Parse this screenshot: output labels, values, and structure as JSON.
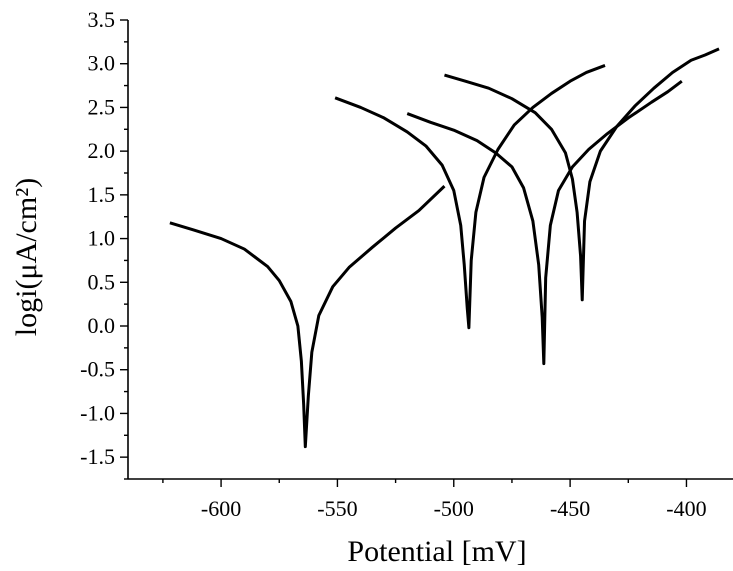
{
  "chart_data": {
    "type": "line",
    "xlabel": "Potential [mV]",
    "ylabel": "logi(μA/cm²)",
    "xlim": [
      -640,
      -380
    ],
    "ylim": [
      -1.75,
      3.5
    ],
    "xticks": [
      -600,
      -550,
      -500,
      -450,
      -400
    ],
    "xtick_labels": [
      "-600",
      "-550",
      "-500",
      "-450",
      "-400"
    ],
    "yticks": [
      -1.5,
      -1.0,
      -0.5,
      0.0,
      0.5,
      1.0,
      1.5,
      2.0,
      2.5,
      3.0,
      3.5
    ],
    "ytick_labels": [
      "-1.5",
      "-1.0",
      "-0.5",
      "0.0",
      "0.5",
      "1.0",
      "1.5",
      "2.0",
      "2.5",
      "3.0",
      "3.5"
    ],
    "grid": false,
    "legend": "none",
    "series": [
      {
        "x": [
          -622,
          -612,
          -600,
          -590,
          -580,
          -575,
          -570,
          -567,
          -565.5,
          -564.5,
          -563.8,
          -562.5,
          -561,
          -558,
          -552,
          -545,
          -535,
          -525,
          -515,
          -504
        ],
        "y": [
          1.18,
          1.1,
          1.0,
          0.88,
          0.68,
          0.52,
          0.28,
          0.0,
          -0.4,
          -0.9,
          -1.38,
          -0.8,
          -0.3,
          0.12,
          0.45,
          0.67,
          0.9,
          1.12,
          1.32,
          1.6
        ]
      },
      {
        "x": [
          -551,
          -540,
          -530,
          -520,
          -512,
          -505,
          -500,
          -497,
          -495.5,
          -494.2,
          -493.5,
          -492.5,
          -490.5,
          -487,
          -481,
          -474,
          -466,
          -458,
          -450,
          -443,
          -435
        ],
        "y": [
          2.61,
          2.5,
          2.38,
          2.22,
          2.06,
          1.84,
          1.55,
          1.15,
          0.7,
          0.2,
          -0.02,
          0.75,
          1.3,
          1.7,
          2.02,
          2.3,
          2.5,
          2.66,
          2.8,
          2.9,
          2.98
        ]
      },
      {
        "x": [
          -520,
          -510,
          -500,
          -490,
          -482,
          -475,
          -470,
          -466,
          -463.5,
          -462,
          -461.3,
          -460.5,
          -458.5,
          -455,
          -449,
          -442,
          -434,
          -425,
          -415,
          -408,
          -402
        ],
        "y": [
          2.43,
          2.33,
          2.24,
          2.12,
          1.98,
          1.82,
          1.58,
          1.2,
          0.7,
          0.1,
          -0.43,
          0.55,
          1.15,
          1.55,
          1.82,
          2.02,
          2.2,
          2.38,
          2.56,
          2.68,
          2.8
        ]
      },
      {
        "x": [
          -504,
          -495,
          -485,
          -475,
          -465,
          -458,
          -452,
          -449,
          -447,
          -445.5,
          -444.8,
          -443.8,
          -441.5,
          -437,
          -430,
          -422,
          -414,
          -406,
          -398,
          -392,
          -386
        ],
        "y": [
          2.87,
          2.8,
          2.72,
          2.6,
          2.44,
          2.25,
          1.98,
          1.68,
          1.3,
          0.8,
          0.3,
          1.2,
          1.65,
          2.0,
          2.28,
          2.52,
          2.72,
          2.9,
          3.04,
          3.1,
          3.17
        ]
      }
    ]
  }
}
